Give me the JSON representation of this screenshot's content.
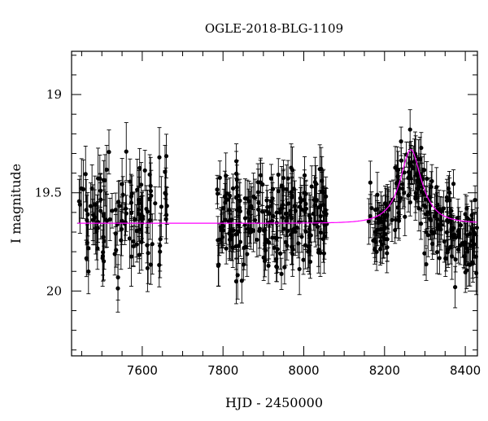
{
  "chart_data": {
    "type": "scatter",
    "title": "OGLE-2018-BLG-1109",
    "xlabel": "HJD - 2450000",
    "ylabel": "I magnitude",
    "xlim": [
      7425,
      8430
    ],
    "ylim": [
      20.33,
      18.78
    ],
    "y_inverted": true,
    "xticks": [
      7600,
      7800,
      8000,
      8200,
      8400
    ],
    "yticks": [
      19,
      19.5,
      20
    ],
    "grid": false,
    "legend": "none",
    "colors": {
      "points": "#000000",
      "model": "#ff00ff",
      "axes": "#000000"
    },
    "series": [
      {
        "type": "scatter_errorbar",
        "segments": [
          {
            "x_range": [
              7440,
              7665
            ],
            "mean_mag": 19.63,
            "scatter": 0.14,
            "err": 0.12,
            "n": 120
          },
          {
            "x_range": [
              7785,
              8060
            ],
            "mean_mag": 19.63,
            "scatter": 0.12,
            "err": 0.1,
            "n": 230
          },
          {
            "x_range": [
              8160,
              8430
            ],
            "mean_mag": "model+offset",
            "scatter": 0.11,
            "err": 0.09,
            "n": 220
          }
        ]
      },
      {
        "type": "model_curve",
        "baseline": 19.655,
        "peak_mag": 19.28,
        "t0": 8265,
        "tE": 55,
        "x_range": [
          7440,
          8430
        ]
      }
    ]
  }
}
